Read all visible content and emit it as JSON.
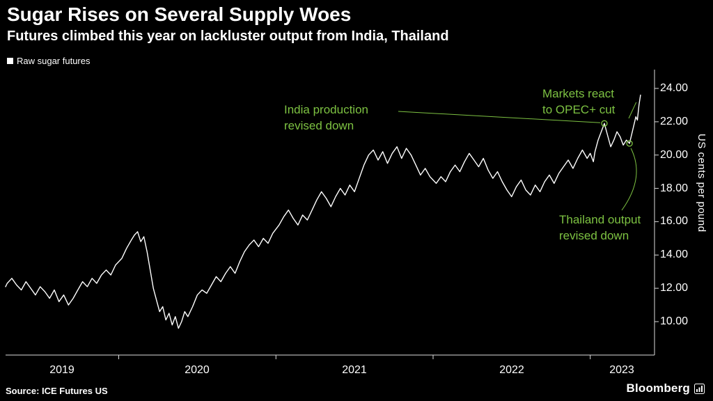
{
  "header": {
    "title": "Sugar Rises on Several Supply Woes",
    "subtitle": "Futures climbed this year on lackluster output from India, Thailand"
  },
  "legend": {
    "label": "Raw sugar futures"
  },
  "footer": {
    "source": "Source: ICE Futures US",
    "brand": "Bloomberg"
  },
  "chart_data": {
    "type": "line",
    "title": "Sugar Rises on Several Supply Woes",
    "subtitle": "Futures climbed this year on lackluster output from India, Thailand",
    "series_name": "Raw sugar futures",
    "ylabel": "US cents per pound",
    "xlabel": "",
    "y_ticks": [
      24,
      22,
      20,
      18,
      16,
      14,
      12,
      10
    ],
    "y_tick_labels": [
      "24.00",
      "22.00",
      "20.00",
      "18.00",
      "16.00",
      "14.00",
      "12.00",
      "10.00"
    ],
    "x_tick_labels": [
      "2019",
      "2020",
      "2021",
      "2022",
      "2023"
    ],
    "x_boundaries": [
      2020,
      2021,
      2022,
      2023
    ],
    "x_range": [
      2019.28,
      2023.4
    ],
    "y_range": [
      10,
      24
    ],
    "grid": false,
    "legend_position": "top-left",
    "line_color": "#ffffff",
    "axis_color": "#dddddd",
    "annotation_color": "#7dc242",
    "source": "ICE Futures US",
    "points": [
      [
        2019.28,
        12.1
      ],
      [
        2019.29,
        12.3
      ],
      [
        2019.32,
        12.6
      ],
      [
        2019.35,
        12.2
      ],
      [
        2019.38,
        11.9
      ],
      [
        2019.41,
        12.4
      ],
      [
        2019.44,
        12.0
      ],
      [
        2019.47,
        11.6
      ],
      [
        2019.5,
        12.1
      ],
      [
        2019.53,
        11.8
      ],
      [
        2019.56,
        11.4
      ],
      [
        2019.59,
        11.9
      ],
      [
        2019.62,
        11.2
      ],
      [
        2019.65,
        11.6
      ],
      [
        2019.68,
        11.0
      ],
      [
        2019.71,
        11.4
      ],
      [
        2019.74,
        11.9
      ],
      [
        2019.77,
        12.4
      ],
      [
        2019.8,
        12.1
      ],
      [
        2019.83,
        12.6
      ],
      [
        2019.86,
        12.3
      ],
      [
        2019.89,
        12.8
      ],
      [
        2019.92,
        13.1
      ],
      [
        2019.95,
        12.8
      ],
      [
        2019.98,
        13.4
      ],
      [
        2020.02,
        13.8
      ],
      [
        2020.05,
        14.4
      ],
      [
        2020.08,
        14.9
      ],
      [
        2020.1,
        15.2
      ],
      [
        2020.12,
        15.4
      ],
      [
        2020.14,
        14.8
      ],
      [
        2020.16,
        15.1
      ],
      [
        2020.18,
        14.2
      ],
      [
        2020.2,
        13.1
      ],
      [
        2020.22,
        12.0
      ],
      [
        2020.24,
        11.3
      ],
      [
        2020.26,
        10.6
      ],
      [
        2020.28,
        10.9
      ],
      [
        2020.3,
        10.1
      ],
      [
        2020.32,
        10.5
      ],
      [
        2020.34,
        9.8
      ],
      [
        2020.36,
        10.3
      ],
      [
        2020.38,
        9.6
      ],
      [
        2020.4,
        10.0
      ],
      [
        2020.42,
        10.6
      ],
      [
        2020.44,
        10.3
      ],
      [
        2020.47,
        10.9
      ],
      [
        2020.5,
        11.6
      ],
      [
        2020.53,
        11.9
      ],
      [
        2020.56,
        11.7
      ],
      [
        2020.59,
        12.2
      ],
      [
        2020.62,
        12.7
      ],
      [
        2020.65,
        12.4
      ],
      [
        2020.68,
        12.9
      ],
      [
        2020.71,
        13.3
      ],
      [
        2020.74,
        12.9
      ],
      [
        2020.77,
        13.6
      ],
      [
        2020.8,
        14.2
      ],
      [
        2020.83,
        14.6
      ],
      [
        2020.86,
        14.9
      ],
      [
        2020.89,
        14.5
      ],
      [
        2020.92,
        15.0
      ],
      [
        2020.95,
        14.7
      ],
      [
        2020.98,
        15.3
      ],
      [
        2021.02,
        15.8
      ],
      [
        2021.05,
        16.3
      ],
      [
        2021.08,
        16.7
      ],
      [
        2021.11,
        16.2
      ],
      [
        2021.14,
        15.8
      ],
      [
        2021.17,
        16.4
      ],
      [
        2021.2,
        16.1
      ],
      [
        2021.23,
        16.7
      ],
      [
        2021.26,
        17.3
      ],
      [
        2021.29,
        17.8
      ],
      [
        2021.32,
        17.4
      ],
      [
        2021.35,
        16.9
      ],
      [
        2021.38,
        17.5
      ],
      [
        2021.41,
        18.0
      ],
      [
        2021.44,
        17.6
      ],
      [
        2021.47,
        18.2
      ],
      [
        2021.5,
        17.8
      ],
      [
        2021.53,
        18.6
      ],
      [
        2021.56,
        19.4
      ],
      [
        2021.59,
        20.0
      ],
      [
        2021.62,
        20.3
      ],
      [
        2021.65,
        19.7
      ],
      [
        2021.68,
        20.2
      ],
      [
        2021.71,
        19.5
      ],
      [
        2021.74,
        20.1
      ],
      [
        2021.77,
        20.5
      ],
      [
        2021.8,
        19.8
      ],
      [
        2021.83,
        20.4
      ],
      [
        2021.86,
        20.0
      ],
      [
        2021.89,
        19.4
      ],
      [
        2021.92,
        18.8
      ],
      [
        2021.95,
        19.2
      ],
      [
        2021.98,
        18.7
      ],
      [
        2022.02,
        18.3
      ],
      [
        2022.05,
        18.7
      ],
      [
        2022.08,
        18.4
      ],
      [
        2022.11,
        19.0
      ],
      [
        2022.14,
        19.4
      ],
      [
        2022.17,
        19.0
      ],
      [
        2022.2,
        19.6
      ],
      [
        2022.23,
        20.1
      ],
      [
        2022.26,
        19.7
      ],
      [
        2022.29,
        19.3
      ],
      [
        2022.32,
        19.8
      ],
      [
        2022.35,
        19.1
      ],
      [
        2022.38,
        18.6
      ],
      [
        2022.41,
        19.0
      ],
      [
        2022.44,
        18.4
      ],
      [
        2022.47,
        17.9
      ],
      [
        2022.5,
        17.5
      ],
      [
        2022.53,
        18.1
      ],
      [
        2022.56,
        18.5
      ],
      [
        2022.59,
        17.9
      ],
      [
        2022.62,
        17.6
      ],
      [
        2022.65,
        18.2
      ],
      [
        2022.68,
        17.8
      ],
      [
        2022.71,
        18.4
      ],
      [
        2022.74,
        18.8
      ],
      [
        2022.77,
        18.3
      ],
      [
        2022.8,
        18.9
      ],
      [
        2022.83,
        19.3
      ],
      [
        2022.86,
        19.7
      ],
      [
        2022.89,
        19.2
      ],
      [
        2022.92,
        19.8
      ],
      [
        2022.95,
        20.3
      ],
      [
        2022.98,
        19.8
      ],
      [
        2023.0,
        20.1
      ],
      [
        2023.02,
        19.6
      ],
      [
        2023.03,
        20.2
      ],
      [
        2023.05,
        20.9
      ],
      [
        2023.07,
        21.4
      ],
      [
        2023.09,
        21.9
      ],
      [
        2023.11,
        21.2
      ],
      [
        2023.13,
        20.5
      ],
      [
        2023.15,
        20.9
      ],
      [
        2023.17,
        21.4
      ],
      [
        2023.19,
        21.1
      ],
      [
        2023.21,
        20.6
      ],
      [
        2023.23,
        20.9
      ],
      [
        2023.25,
        20.7
      ],
      [
        2023.27,
        21.5
      ],
      [
        2023.29,
        22.3
      ],
      [
        2023.3,
        22.1
      ],
      [
        2023.31,
        23.0
      ],
      [
        2023.32,
        23.6
      ]
    ],
    "annotations": [
      {
        "id": "india",
        "text": "India production\nrevised down",
        "anchor_x": 2023.09,
        "anchor_y": 21.9,
        "marker": true
      },
      {
        "id": "opec",
        "text": "Markets react\nto OPEC+ cut",
        "anchor_x": 2023.31,
        "anchor_y": 23.0,
        "marker": false
      },
      {
        "id": "thailand",
        "text": "Thailand output\nrevised down",
        "anchor_x": 2023.25,
        "anchor_y": 20.7,
        "marker": true
      }
    ]
  }
}
